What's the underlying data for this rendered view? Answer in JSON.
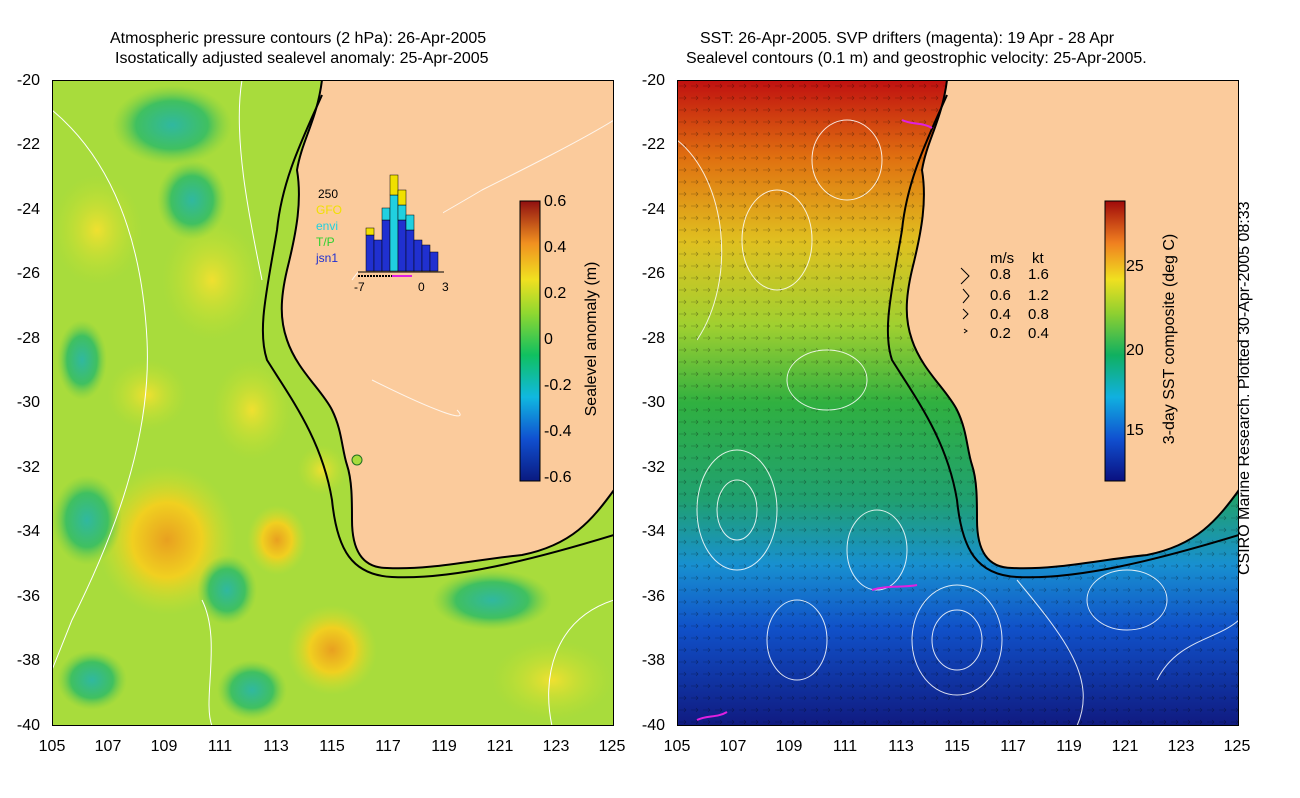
{
  "left_panel": {
    "title_line1": "Atmospheric pressure contours (2 hPa): 26-Apr-2005",
    "title_line2": "Isostatically adjusted sealevel anomaly: 25-Apr-2005",
    "y_ticks": [
      "-20",
      "-22",
      "-24",
      "-26",
      "-28",
      "-30",
      "-32",
      "-34",
      "-36",
      "-38",
      "-40"
    ],
    "x_ticks": [
      "105",
      "107",
      "109",
      "111",
      "113",
      "115",
      "117",
      "119",
      "121",
      "123",
      "125"
    ],
    "colorbar": {
      "label": "Sealevel anomaly (m)",
      "ticks": [
        "0.6",
        "0.4",
        "0.2",
        "0",
        "-0.2",
        "-0.4",
        "-0.6"
      ]
    },
    "inset": {
      "y_max_label": "250",
      "legend": [
        {
          "label": "GFO",
          "color": "#f0e000"
        },
        {
          "label": "envi",
          "color": "#20d0e0"
        },
        {
          "label": "T/P",
          "color": "#30d030"
        },
        {
          "label": "jsn1",
          "color": "#2030d0"
        }
      ],
      "x_ticks": [
        "-7",
        "0",
        "3"
      ]
    }
  },
  "right_panel": {
    "title_line1": "SST: 26-Apr-2005. SVP drifters (magenta): 19 Apr - 28 Apr",
    "title_line2": "Sealevel contours (0.1 m) and geostrophic velocity: 25-Apr-2005.",
    "y_ticks": [
      "-20",
      "-22",
      "-24",
      "-26",
      "-28",
      "-30",
      "-32",
      "-34",
      "-36",
      "-38",
      "-40"
    ],
    "x_ticks": [
      "105",
      "107",
      "109",
      "111",
      "113",
      "115",
      "117",
      "119",
      "121",
      "123",
      "125"
    ],
    "colorbar": {
      "label": "3-day SST composite (deg C)",
      "ticks": [
        "25",
        "20",
        "15"
      ]
    },
    "velocity_legend": {
      "header_ms": "m/s",
      "header_kt": "kt",
      "rows": [
        {
          "ms": "0.8",
          "kt": "1.6"
        },
        {
          "ms": "0.6",
          "kt": "1.2"
        },
        {
          "ms": "0.4",
          "kt": "0.8"
        },
        {
          "ms": "0.2",
          "kt": "0.4"
        }
      ]
    }
  },
  "credit": "CSIRO Marine Research. Plotted 30-Apr-2005 08:33",
  "colors": {
    "land": "#fbcb9c",
    "coast": "#000000",
    "contour": "#ffffff",
    "drifter": "#e020e0"
  }
}
